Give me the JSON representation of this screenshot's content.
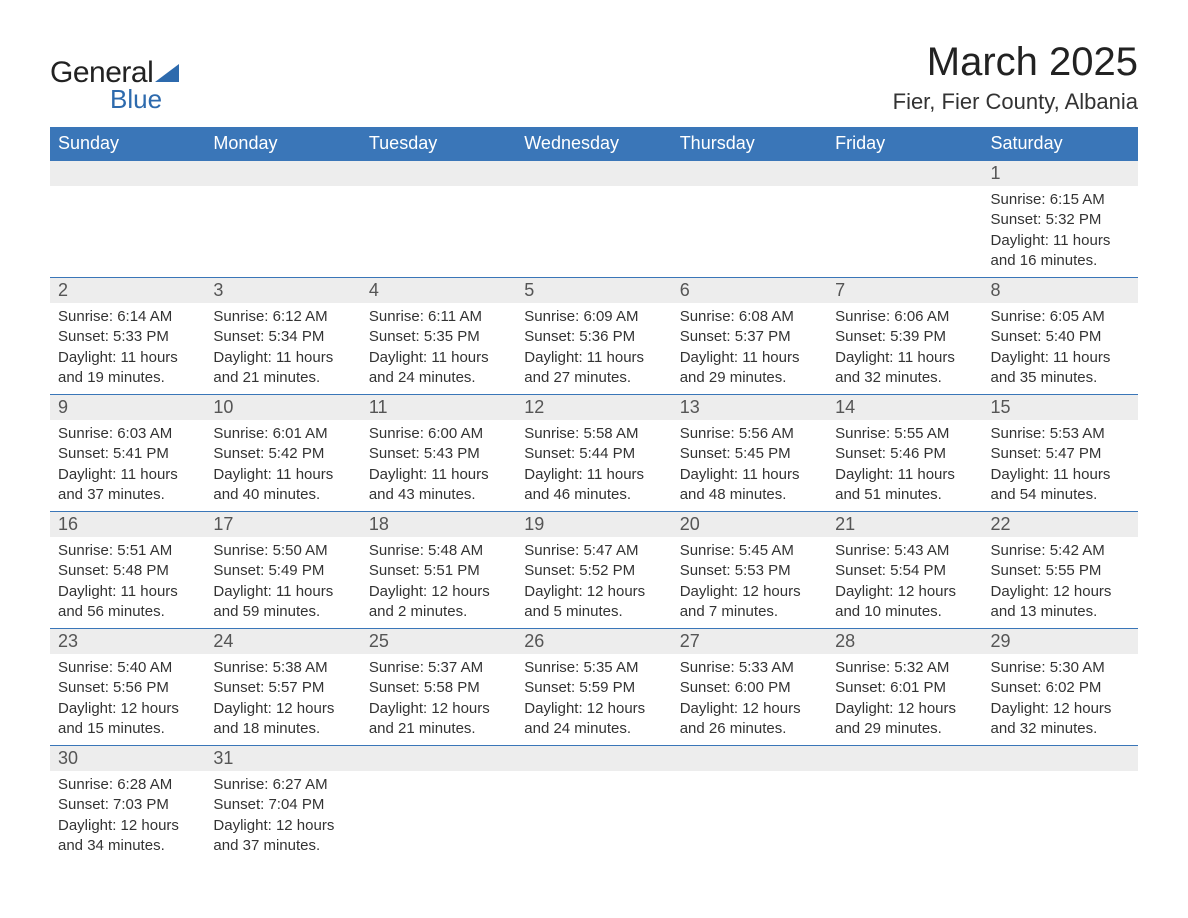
{
  "logo": {
    "word1": "General",
    "word2": "Blue",
    "triangle_color": "#2d6aad"
  },
  "title": "March 2025",
  "location": "Fier, Fier County, Albania",
  "colors": {
    "header_bg": "#3a76b8",
    "header_text": "#ffffff",
    "daynum_bg": "#ededed",
    "row_border": "#3a76b8",
    "text": "#333333"
  },
  "fonts": {
    "title_size": 40,
    "location_size": 22,
    "weekday_size": 18,
    "daynum_size": 18,
    "cell_size": 15
  },
  "weekdays": [
    "Sunday",
    "Monday",
    "Tuesday",
    "Wednesday",
    "Thursday",
    "Friday",
    "Saturday"
  ],
  "weeks": [
    [
      null,
      null,
      null,
      null,
      null,
      null,
      {
        "n": "1",
        "sr": "Sunrise: 6:15 AM",
        "ss": "Sunset: 5:32 PM",
        "d1": "Daylight: 11 hours",
        "d2": "and 16 minutes."
      }
    ],
    [
      {
        "n": "2",
        "sr": "Sunrise: 6:14 AM",
        "ss": "Sunset: 5:33 PM",
        "d1": "Daylight: 11 hours",
        "d2": "and 19 minutes."
      },
      {
        "n": "3",
        "sr": "Sunrise: 6:12 AM",
        "ss": "Sunset: 5:34 PM",
        "d1": "Daylight: 11 hours",
        "d2": "and 21 minutes."
      },
      {
        "n": "4",
        "sr": "Sunrise: 6:11 AM",
        "ss": "Sunset: 5:35 PM",
        "d1": "Daylight: 11 hours",
        "d2": "and 24 minutes."
      },
      {
        "n": "5",
        "sr": "Sunrise: 6:09 AM",
        "ss": "Sunset: 5:36 PM",
        "d1": "Daylight: 11 hours",
        "d2": "and 27 minutes."
      },
      {
        "n": "6",
        "sr": "Sunrise: 6:08 AM",
        "ss": "Sunset: 5:37 PM",
        "d1": "Daylight: 11 hours",
        "d2": "and 29 minutes."
      },
      {
        "n": "7",
        "sr": "Sunrise: 6:06 AM",
        "ss": "Sunset: 5:39 PM",
        "d1": "Daylight: 11 hours",
        "d2": "and 32 minutes."
      },
      {
        "n": "8",
        "sr": "Sunrise: 6:05 AM",
        "ss": "Sunset: 5:40 PM",
        "d1": "Daylight: 11 hours",
        "d2": "and 35 minutes."
      }
    ],
    [
      {
        "n": "9",
        "sr": "Sunrise: 6:03 AM",
        "ss": "Sunset: 5:41 PM",
        "d1": "Daylight: 11 hours",
        "d2": "and 37 minutes."
      },
      {
        "n": "10",
        "sr": "Sunrise: 6:01 AM",
        "ss": "Sunset: 5:42 PM",
        "d1": "Daylight: 11 hours",
        "d2": "and 40 minutes."
      },
      {
        "n": "11",
        "sr": "Sunrise: 6:00 AM",
        "ss": "Sunset: 5:43 PM",
        "d1": "Daylight: 11 hours",
        "d2": "and 43 minutes."
      },
      {
        "n": "12",
        "sr": "Sunrise: 5:58 AM",
        "ss": "Sunset: 5:44 PM",
        "d1": "Daylight: 11 hours",
        "d2": "and 46 minutes."
      },
      {
        "n": "13",
        "sr": "Sunrise: 5:56 AM",
        "ss": "Sunset: 5:45 PM",
        "d1": "Daylight: 11 hours",
        "d2": "and 48 minutes."
      },
      {
        "n": "14",
        "sr": "Sunrise: 5:55 AM",
        "ss": "Sunset: 5:46 PM",
        "d1": "Daylight: 11 hours",
        "d2": "and 51 minutes."
      },
      {
        "n": "15",
        "sr": "Sunrise: 5:53 AM",
        "ss": "Sunset: 5:47 PM",
        "d1": "Daylight: 11 hours",
        "d2": "and 54 minutes."
      }
    ],
    [
      {
        "n": "16",
        "sr": "Sunrise: 5:51 AM",
        "ss": "Sunset: 5:48 PM",
        "d1": "Daylight: 11 hours",
        "d2": "and 56 minutes."
      },
      {
        "n": "17",
        "sr": "Sunrise: 5:50 AM",
        "ss": "Sunset: 5:49 PM",
        "d1": "Daylight: 11 hours",
        "d2": "and 59 minutes."
      },
      {
        "n": "18",
        "sr": "Sunrise: 5:48 AM",
        "ss": "Sunset: 5:51 PM",
        "d1": "Daylight: 12 hours",
        "d2": "and 2 minutes."
      },
      {
        "n": "19",
        "sr": "Sunrise: 5:47 AM",
        "ss": "Sunset: 5:52 PM",
        "d1": "Daylight: 12 hours",
        "d2": "and 5 minutes."
      },
      {
        "n": "20",
        "sr": "Sunrise: 5:45 AM",
        "ss": "Sunset: 5:53 PM",
        "d1": "Daylight: 12 hours",
        "d2": "and 7 minutes."
      },
      {
        "n": "21",
        "sr": "Sunrise: 5:43 AM",
        "ss": "Sunset: 5:54 PM",
        "d1": "Daylight: 12 hours",
        "d2": "and 10 minutes."
      },
      {
        "n": "22",
        "sr": "Sunrise: 5:42 AM",
        "ss": "Sunset: 5:55 PM",
        "d1": "Daylight: 12 hours",
        "d2": "and 13 minutes."
      }
    ],
    [
      {
        "n": "23",
        "sr": "Sunrise: 5:40 AM",
        "ss": "Sunset: 5:56 PM",
        "d1": "Daylight: 12 hours",
        "d2": "and 15 minutes."
      },
      {
        "n": "24",
        "sr": "Sunrise: 5:38 AM",
        "ss": "Sunset: 5:57 PM",
        "d1": "Daylight: 12 hours",
        "d2": "and 18 minutes."
      },
      {
        "n": "25",
        "sr": "Sunrise: 5:37 AM",
        "ss": "Sunset: 5:58 PM",
        "d1": "Daylight: 12 hours",
        "d2": "and 21 minutes."
      },
      {
        "n": "26",
        "sr": "Sunrise: 5:35 AM",
        "ss": "Sunset: 5:59 PM",
        "d1": "Daylight: 12 hours",
        "d2": "and 24 minutes."
      },
      {
        "n": "27",
        "sr": "Sunrise: 5:33 AM",
        "ss": "Sunset: 6:00 PM",
        "d1": "Daylight: 12 hours",
        "d2": "and 26 minutes."
      },
      {
        "n": "28",
        "sr": "Sunrise: 5:32 AM",
        "ss": "Sunset: 6:01 PM",
        "d1": "Daylight: 12 hours",
        "d2": "and 29 minutes."
      },
      {
        "n": "29",
        "sr": "Sunrise: 5:30 AM",
        "ss": "Sunset: 6:02 PM",
        "d1": "Daylight: 12 hours",
        "d2": "and 32 minutes."
      }
    ],
    [
      {
        "n": "30",
        "sr": "Sunrise: 6:28 AM",
        "ss": "Sunset: 7:03 PM",
        "d1": "Daylight: 12 hours",
        "d2": "and 34 minutes."
      },
      {
        "n": "31",
        "sr": "Sunrise: 6:27 AM",
        "ss": "Sunset: 7:04 PM",
        "d1": "Daylight: 12 hours",
        "d2": "and 37 minutes."
      },
      null,
      null,
      null,
      null,
      null
    ]
  ]
}
